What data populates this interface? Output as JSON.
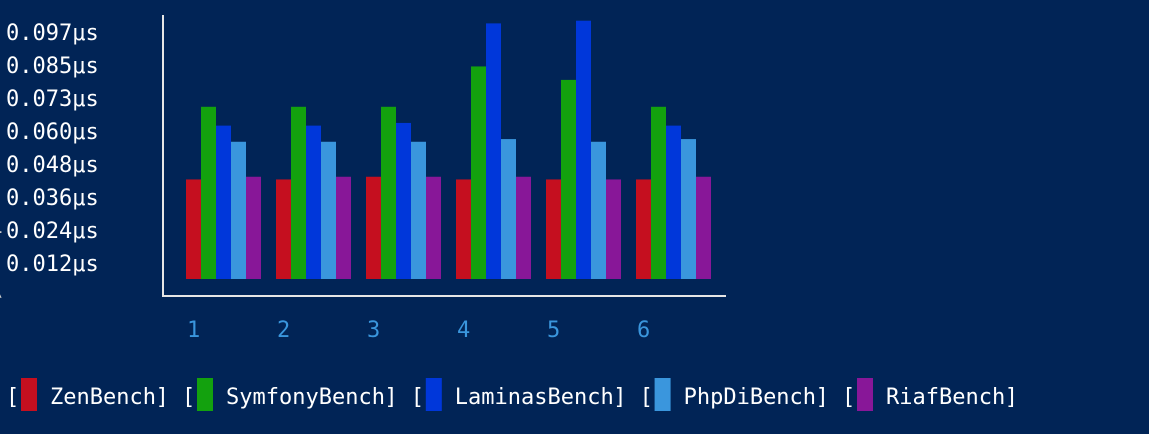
{
  "chart_data": {
    "type": "bar",
    "title": "",
    "xlabel": "",
    "ylabel": "",
    "unit": "μs",
    "categories": [
      "1",
      "2",
      "3",
      "4",
      "5",
      "6"
    ],
    "y_ticks": [
      "0.097μs",
      "0.085μs",
      "0.073μs",
      "0.060μs",
      "0.048μs",
      "0.036μs",
      "0.024μs",
      "0.012μs"
    ],
    "ylim": [
      0,
      0.097
    ],
    "grid": false,
    "legend_position": "bottom",
    "series": [
      {
        "name": "ZenBench",
        "color": "#c50f1f",
        "values": [
          0.037,
          0.037,
          0.038,
          0.037,
          0.037,
          0.037
        ]
      },
      {
        "name": "SymfonyBench",
        "color": "#13a10e",
        "values": [
          0.064,
          0.064,
          0.064,
          0.079,
          0.074,
          0.064
        ]
      },
      {
        "name": "LaminasBench",
        "color": "#0037da",
        "values": [
          0.057,
          0.057,
          0.058,
          0.095,
          0.096,
          0.057
        ]
      },
      {
        "name": "PhpDiBench",
        "color": "#3a96dd",
        "values": [
          0.051,
          0.051,
          0.051,
          0.052,
          0.051,
          0.052
        ]
      },
      {
        "name": "RiafBench",
        "color": "#881798",
        "values": [
          0.038,
          0.038,
          0.038,
          0.038,
          0.037,
          0.038
        ]
      }
    ]
  }
}
